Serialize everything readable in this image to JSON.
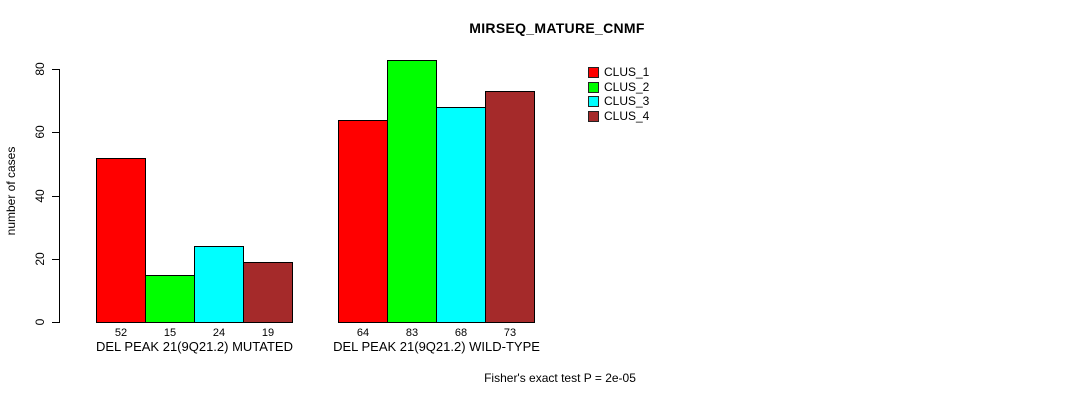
{
  "figure": {
    "background": "#ffffff",
    "text_color": "#000000",
    "axis_color": "#000000"
  },
  "chart_data": {
    "type": "bar",
    "title": "MIRSEQ_MATURE_CNMF",
    "ylabel": "number of cases",
    "xlabel": "",
    "ylim": [
      0,
      80
    ],
    "yticks": [
      0,
      20,
      40,
      60,
      80
    ],
    "categories": [
      "DEL PEAK 21(9Q21.2) MUTATED",
      "DEL PEAK 21(9Q21.2) WILD-TYPE"
    ],
    "series": [
      {
        "name": "CLUS_1",
        "color": "#ff0000",
        "values": [
          52,
          64
        ]
      },
      {
        "name": "CLUS_2",
        "color": "#00ff00",
        "values": [
          15,
          83
        ]
      },
      {
        "name": "CLUS_3",
        "color": "#00ffff",
        "values": [
          24,
          68
        ]
      },
      {
        "name": "CLUS_4",
        "color": "#a52a2a",
        "values": [
          19,
          73
        ]
      }
    ],
    "bar_value_labels_shown": true,
    "bar_border_color": "#000000",
    "legend_position": "top-right",
    "grid": false,
    "annotation": "Fisher's exact test P = 2e-05"
  }
}
